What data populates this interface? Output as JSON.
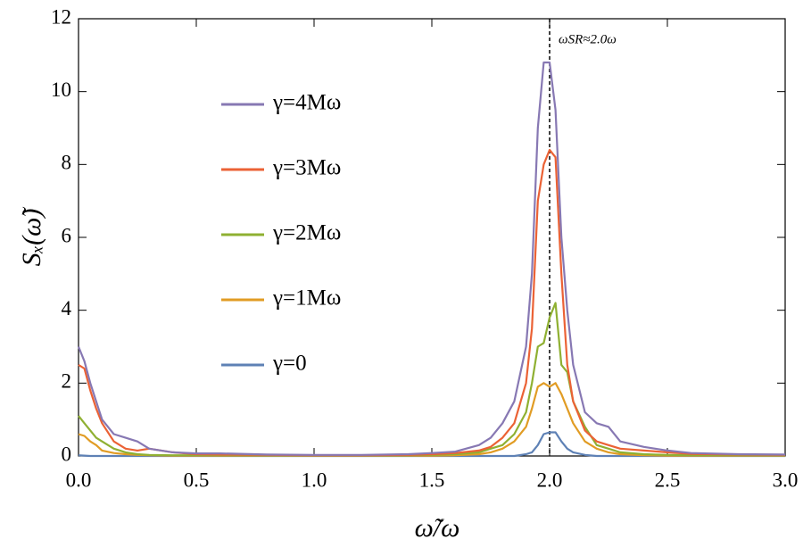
{
  "chart_data": {
    "type": "line",
    "xlabel": "ω̃/ω",
    "ylabel": "Sₓ(ω̃)",
    "annotation": "ωSR≈2.0ω",
    "vline": 2.0,
    "x": [
      0,
      0.025,
      0.05,
      0.075,
      0.1,
      0.15,
      0.2,
      0.25,
      0.3,
      0.4,
      0.5,
      0.6,
      0.8,
      1.0,
      1.2,
      1.4,
      1.5,
      1.6,
      1.7,
      1.75,
      1.8,
      1.85,
      1.9,
      1.925,
      1.95,
      1.975,
      2.0,
      2.025,
      2.05,
      2.075,
      2.1,
      2.15,
      2.2,
      2.25,
      2.3,
      2.4,
      2.5,
      2.6,
      2.8,
      3.0
    ],
    "series": [
      {
        "name": "γ=4Mω",
        "color": "#8778b3",
        "values": [
          3.0,
          2.6,
          2.0,
          1.5,
          1.0,
          0.6,
          0.5,
          0.4,
          0.2,
          0.1,
          0.07,
          0.07,
          0.04,
          0.03,
          0.03,
          0.05,
          0.08,
          0.12,
          0.3,
          0.5,
          0.9,
          1.5,
          3.0,
          5.0,
          9.0,
          10.8,
          10.8,
          9.5,
          6.0,
          4.0,
          2.5,
          1.2,
          0.9,
          0.8,
          0.4,
          0.25,
          0.15,
          0.08,
          0.05,
          0.04
        ]
      },
      {
        "name": "γ=3Mω",
        "color": "#eb6235",
        "values": [
          2.5,
          2.4,
          1.8,
          1.3,
          0.9,
          0.4,
          0.2,
          0.15,
          0.2,
          0.1,
          0.05,
          0.04,
          0.03,
          0.02,
          0.02,
          0.03,
          0.05,
          0.08,
          0.15,
          0.25,
          0.5,
          0.9,
          2.0,
          3.5,
          7.0,
          8.0,
          8.4,
          8.2,
          5.0,
          2.5,
          1.5,
          0.7,
          0.4,
          0.3,
          0.2,
          0.15,
          0.1,
          0.06,
          0.04,
          0.03
        ]
      },
      {
        "name": "γ=2Mω",
        "color": "#8fb032",
        "values": [
          1.1,
          0.9,
          0.7,
          0.5,
          0.4,
          0.2,
          0.1,
          0.05,
          0.03,
          0.02,
          0.02,
          0.02,
          0.02,
          0.02,
          0.02,
          0.02,
          0.03,
          0.05,
          0.1,
          0.2,
          0.3,
          0.6,
          1.2,
          2.0,
          3.0,
          3.1,
          3.8,
          4.2,
          2.5,
          2.3,
          1.5,
          0.8,
          0.3,
          0.2,
          0.1,
          0.05,
          0.03,
          0.02,
          0.02,
          0.02
        ]
      },
      {
        "name": "γ=1Mω",
        "color": "#e19c24",
        "values": [
          0.6,
          0.55,
          0.4,
          0.3,
          0.15,
          0.08,
          0.05,
          0.03,
          0.02,
          0.01,
          0.01,
          0.01,
          0.01,
          0.01,
          0.01,
          0.01,
          0.01,
          0.02,
          0.05,
          0.1,
          0.2,
          0.4,
          0.8,
          1.3,
          1.9,
          2.0,
          1.9,
          2.0,
          1.7,
          1.3,
          0.9,
          0.4,
          0.2,
          0.1,
          0.05,
          0.02,
          0.01,
          0.01,
          0.01,
          0.01
        ]
      },
      {
        "name": "γ=0",
        "color": "#5e81b5",
        "values": [
          0.02,
          0.01,
          0,
          0,
          0,
          0,
          0,
          0,
          0,
          0,
          0,
          0,
          0,
          0,
          0,
          0,
          0,
          0,
          0,
          0,
          0,
          0,
          0.05,
          0.1,
          0.3,
          0.6,
          0.65,
          0.65,
          0.4,
          0.2,
          0.1,
          0.03,
          0,
          0,
          0,
          0,
          0,
          0,
          0,
          0
        ]
      }
    ],
    "xlim": [
      0,
      3
    ],
    "ylim": [
      0,
      12
    ],
    "xticks": [
      {
        "value": 0,
        "label": "0.0"
      },
      {
        "value": 0.5,
        "label": "0.5"
      },
      {
        "value": 1,
        "label": "1.0"
      },
      {
        "value": 1.5,
        "label": "1.5"
      },
      {
        "value": 2,
        "label": "2.0"
      },
      {
        "value": 2.5,
        "label": "2.5"
      },
      {
        "value": 3,
        "label": "3.0"
      }
    ],
    "yticks": [
      0,
      2,
      4,
      6,
      8,
      10,
      12
    ]
  }
}
